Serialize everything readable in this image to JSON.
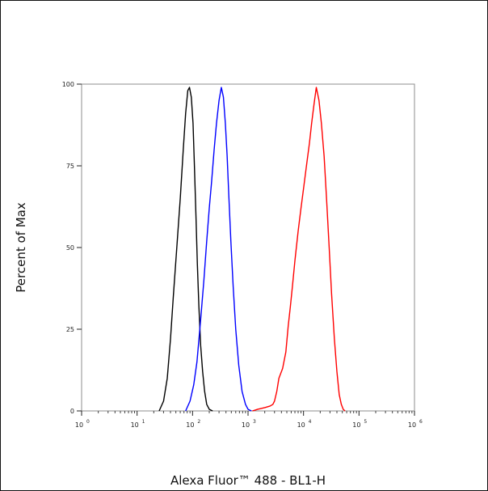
{
  "chart_data": {
    "type": "line",
    "xlabel": "Alexa Fluor™ 488 - BL1-H",
    "ylabel": "Percent of Max",
    "x_scale": "log",
    "xlim": [
      1,
      1000000
    ],
    "ylim": [
      0,
      100
    ],
    "x_ticks": [
      {
        "base": "10",
        "exp": "0"
      },
      {
        "base": "10",
        "exp": "1"
      },
      {
        "base": "10",
        "exp": "2"
      },
      {
        "base": "10",
        "exp": "3"
      },
      {
        "base": "10",
        "exp": "4"
      },
      {
        "base": "10",
        "exp": "5"
      },
      {
        "base": "10",
        "exp": "6"
      }
    ],
    "y_ticks": [
      "0",
      "25",
      "50",
      "75",
      "100"
    ],
    "series": [
      {
        "color": "#000000",
        "points": [
          [
            25,
            0
          ],
          [
            30,
            3
          ],
          [
            35,
            10
          ],
          [
            40,
            22
          ],
          [
            45,
            35
          ],
          [
            52,
            50
          ],
          [
            60,
            65
          ],
          [
            68,
            80
          ],
          [
            75,
            91
          ],
          [
            82,
            98
          ],
          [
            88,
            99
          ],
          [
            95,
            96
          ],
          [
            102,
            88
          ],
          [
            108,
            75
          ],
          [
            115,
            60
          ],
          [
            122,
            45
          ],
          [
            130,
            32
          ],
          [
            140,
            20
          ],
          [
            152,
            12
          ],
          [
            165,
            6
          ],
          [
            180,
            2
          ],
          [
            200,
            0.5
          ],
          [
            230,
            0
          ]
        ]
      },
      {
        "color": "#0000ff",
        "points": [
          [
            75,
            0
          ],
          [
            90,
            3
          ],
          [
            105,
            8
          ],
          [
            120,
            15
          ],
          [
            140,
            28
          ],
          [
            160,
            40
          ],
          [
            180,
            52
          ],
          [
            200,
            62
          ],
          [
            220,
            70
          ],
          [
            245,
            80
          ],
          [
            270,
            88
          ],
          [
            300,
            95
          ],
          [
            330,
            99
          ],
          [
            360,
            96
          ],
          [
            390,
            88
          ],
          [
            420,
            78
          ],
          [
            450,
            66
          ],
          [
            490,
            52
          ],
          [
            540,
            38
          ],
          [
            600,
            25
          ],
          [
            680,
            14
          ],
          [
            780,
            6
          ],
          [
            900,
            2
          ],
          [
            1000,
            0.5
          ],
          [
            1150,
            0
          ]
        ]
      },
      {
        "color": "#ff0000",
        "points": [
          [
            1200,
            0
          ],
          [
            1500,
            0.5
          ],
          [
            2000,
            1
          ],
          [
            2500,
            1.5
          ],
          [
            2800,
            2
          ],
          [
            3000,
            3
          ],
          [
            3300,
            6
          ],
          [
            3600,
            10
          ],
          [
            4200,
            13
          ],
          [
            4800,
            18
          ],
          [
            5300,
            26
          ],
          [
            5800,
            32
          ],
          [
            6300,
            38
          ],
          [
            7000,
            46
          ],
          [
            8000,
            55
          ],
          [
            9000,
            62
          ],
          [
            10000,
            68
          ],
          [
            11500,
            76
          ],
          [
            12800,
            82
          ],
          [
            14000,
            88
          ],
          [
            15500,
            94
          ],
          [
            17000,
            99
          ],
          [
            19000,
            95
          ],
          [
            21000,
            88
          ],
          [
            23500,
            78
          ],
          [
            26000,
            65
          ],
          [
            29000,
            50
          ],
          [
            32000,
            36
          ],
          [
            36000,
            22
          ],
          [
            40000,
            12
          ],
          [
            44000,
            5
          ],
          [
            48000,
            2
          ],
          [
            52000,
            0.5
          ],
          [
            56000,
            0
          ]
        ]
      }
    ],
    "grid": false,
    "legend": "none"
  }
}
